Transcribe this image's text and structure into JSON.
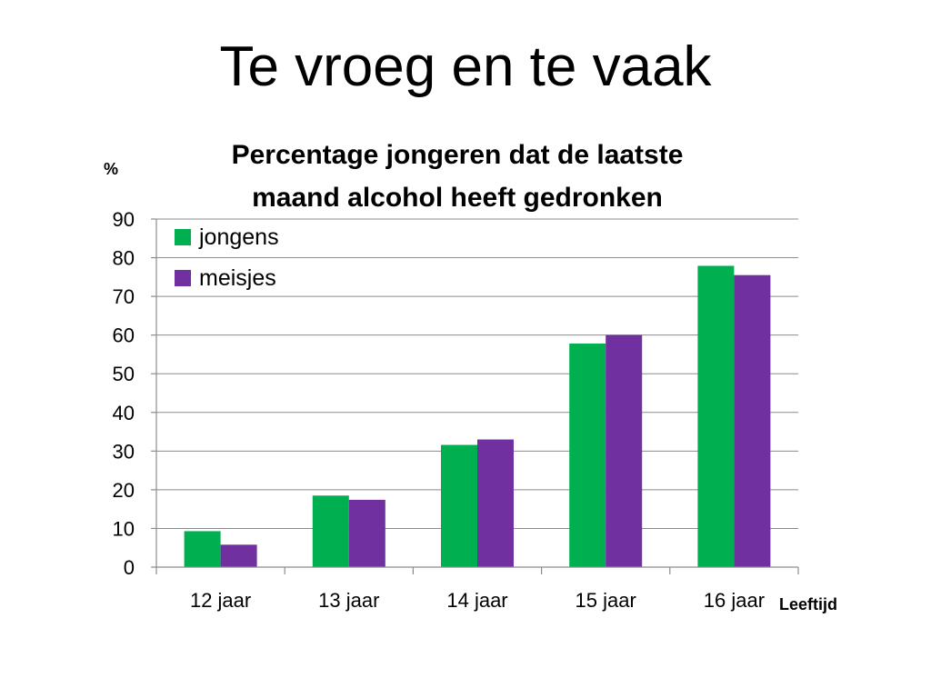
{
  "slide": {
    "title": "Te vroeg en te vaak"
  },
  "chart_data": {
    "type": "bar",
    "title_lines": [
      "Percentage jongeren dat de laatste",
      "maand alcohol heeft gedronken"
    ],
    "ylabel": "%",
    "xlabel": "Leeftijd",
    "categories": [
      "12 jaar",
      "13 jaar",
      "14 jaar",
      "15 jaar",
      "16 jaar"
    ],
    "series": [
      {
        "name": "jongens",
        "color": "#00b050",
        "values": [
          9.3,
          18.5,
          31.6,
          57.8,
          77.9
        ]
      },
      {
        "name": "meisjes",
        "color": "#7030a0",
        "values": [
          5.8,
          17.4,
          33.0,
          60.0,
          75.5
        ]
      }
    ],
    "ylim": [
      0,
      90
    ],
    "yticks": [
      0,
      10,
      20,
      30,
      40,
      50,
      60,
      70,
      80,
      90
    ],
    "grid": true,
    "legend": "top-left"
  }
}
